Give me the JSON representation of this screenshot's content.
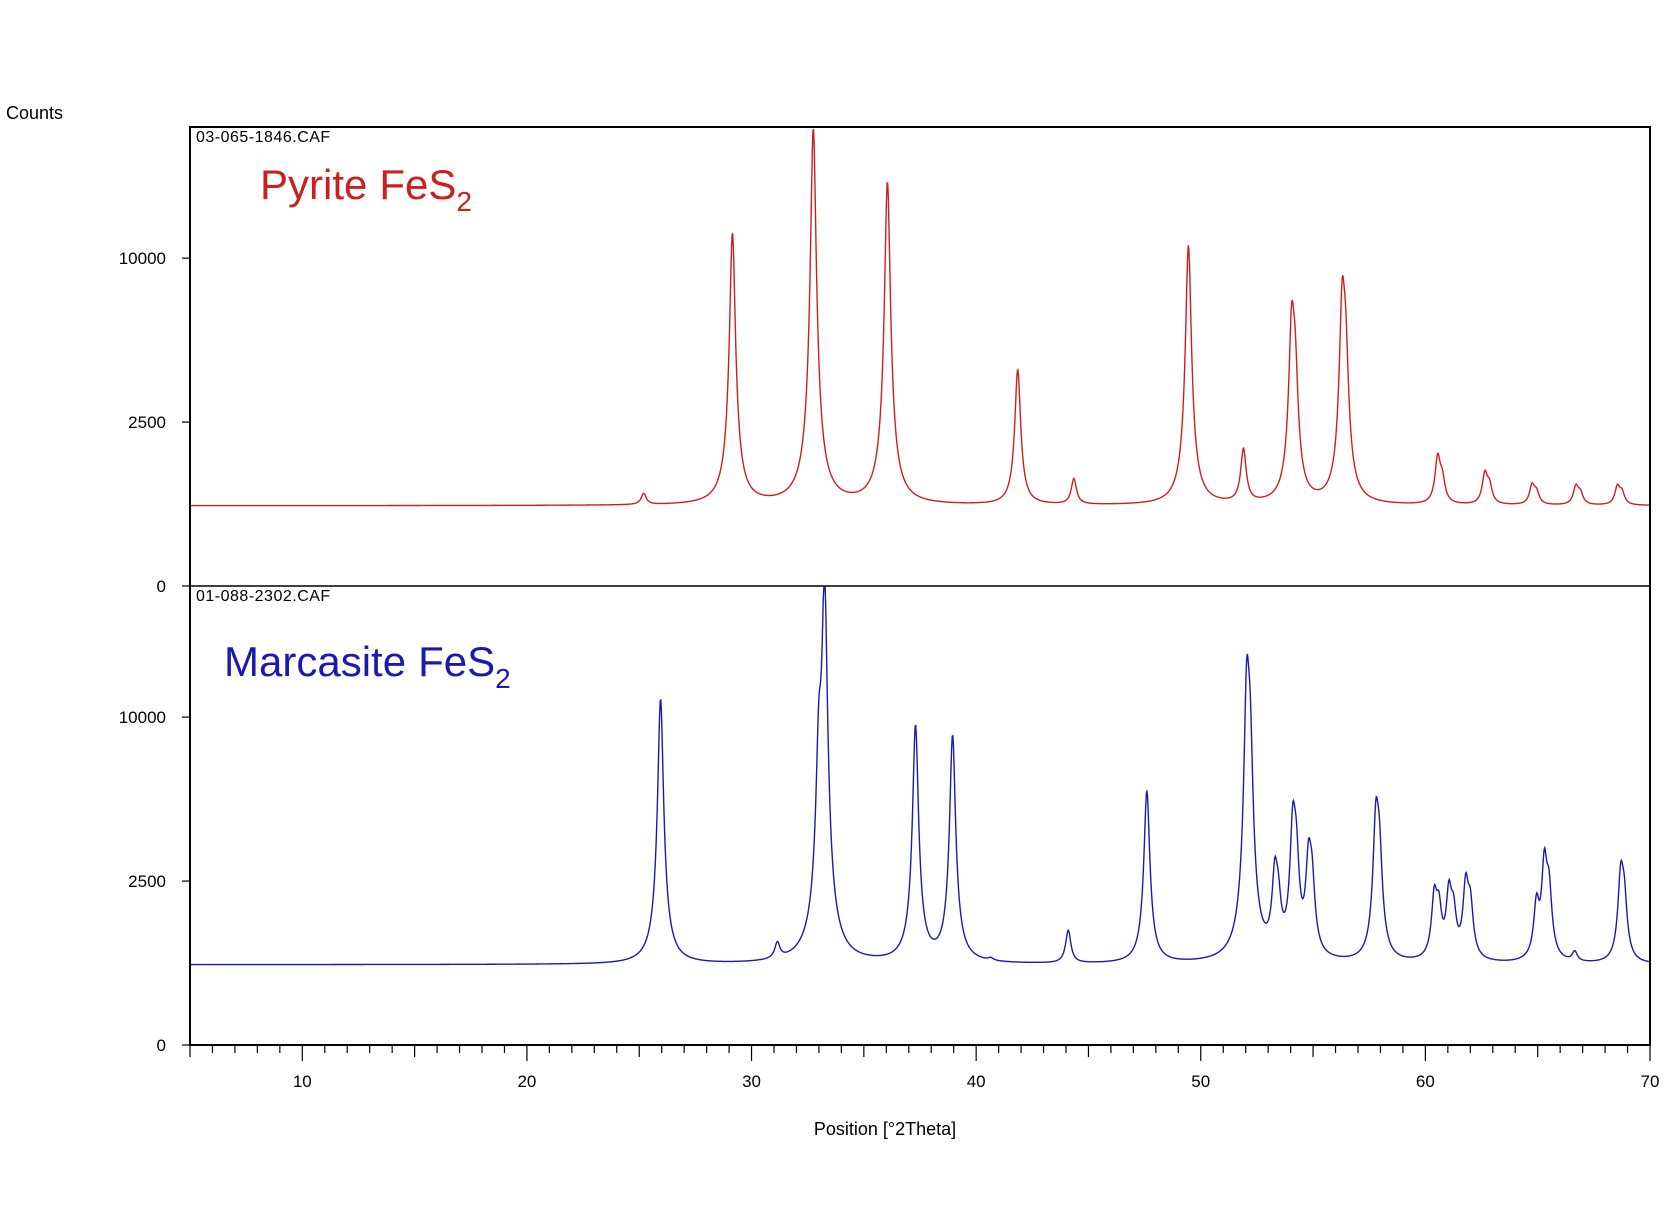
{
  "chart_data": {
    "type": "line",
    "xlabel": "Position [°2Theta]",
    "ylabel": "Counts",
    "xlim": [
      5,
      70
    ],
    "x_ticks": [
      10,
      20,
      30,
      40,
      50,
      60,
      70
    ],
    "y_scale": "sqrt",
    "y_ticks": [
      0,
      2500,
      10000
    ],
    "grid": false,
    "panels": [
      {
        "file": "03-065-1846.CAF",
        "name": "Pyrite",
        "formula_base": "FeS",
        "formula_sub": "2",
        "color": "#cc1f1f",
        "ylim": [
          0,
          19600
        ],
        "y_ticks": [
          0,
          2500,
          10000
        ],
        "baseline": 600,
        "peaks": [
          {
            "x": 25.2,
            "y": 780
          },
          {
            "x": 29.15,
            "y": 11600
          },
          {
            "x": 32.75,
            "y": 19500
          },
          {
            "x": 36.05,
            "y": 15200
          },
          {
            "x": 41.85,
            "y": 4350
          },
          {
            "x": 44.35,
            "y": 1050
          },
          {
            "x": 49.45,
            "y": 10800
          },
          {
            "x": 51.9,
            "y": 1700
          },
          {
            "x": 54.05,
            "y": 6100
          },
          {
            "x": 54.2,
            "y": 3800
          },
          {
            "x": 56.3,
            "y": 7200
          },
          {
            "x": 56.45,
            "y": 4400
          },
          {
            "x": 60.55,
            "y": 1500
          },
          {
            "x": 60.75,
            "y": 1000
          },
          {
            "x": 62.65,
            "y": 1140
          },
          {
            "x": 62.85,
            "y": 900
          },
          {
            "x": 64.75,
            "y": 920
          },
          {
            "x": 64.95,
            "y": 790
          },
          {
            "x": 66.7,
            "y": 900
          },
          {
            "x": 66.9,
            "y": 780
          },
          {
            "x": 68.55,
            "y": 900
          },
          {
            "x": 68.75,
            "y": 790
          }
        ]
      },
      {
        "file": "01-088-2302.CAF",
        "name": "Marcasite",
        "formula_base": "FeS",
        "formula_sub": "2",
        "color": "#1a1ab0",
        "ylim": [
          0,
          19600
        ],
        "y_ticks": [
          0,
          2500,
          10000
        ],
        "baseline": 600,
        "peaks": [
          {
            "x": 25.95,
            "y": 11150
          },
          {
            "x": 31.15,
            "y": 880
          },
          {
            "x": 33.0,
            "y": 7200
          },
          {
            "x": 33.25,
            "y": 19500
          },
          {
            "x": 37.3,
            "y": 9500
          },
          {
            "x": 38.95,
            "y": 8900
          },
          {
            "x": 40.65,
            "y": 640
          },
          {
            "x": 44.1,
            "y": 1200
          },
          {
            "x": 47.6,
            "y": 6000
          },
          {
            "x": 52.05,
            "y": 11200
          },
          {
            "x": 52.2,
            "y": 7000
          },
          {
            "x": 53.3,
            "y": 2480
          },
          {
            "x": 53.45,
            "y": 1600
          },
          {
            "x": 54.1,
            "y": 4200
          },
          {
            "x": 54.25,
            "y": 2900
          },
          {
            "x": 54.8,
            "y": 2950
          },
          {
            "x": 54.95,
            "y": 2200
          },
          {
            "x": 57.8,
            "y": 4550
          },
          {
            "x": 57.95,
            "y": 3100
          },
          {
            "x": 60.4,
            "y": 1950
          },
          {
            "x": 60.6,
            "y": 1600
          },
          {
            "x": 61.05,
            "y": 2050
          },
          {
            "x": 61.25,
            "y": 1500
          },
          {
            "x": 61.8,
            "y": 2300
          },
          {
            "x": 62.0,
            "y": 1700
          },
          {
            "x": 64.95,
            "y": 1750
          },
          {
            "x": 65.3,
            "y": 3000
          },
          {
            "x": 65.5,
            "y": 2100
          },
          {
            "x": 66.65,
            "y": 760
          },
          {
            "x": 68.7,
            "y": 2580
          },
          {
            "x": 68.85,
            "y": 1850
          }
        ]
      }
    ]
  }
}
